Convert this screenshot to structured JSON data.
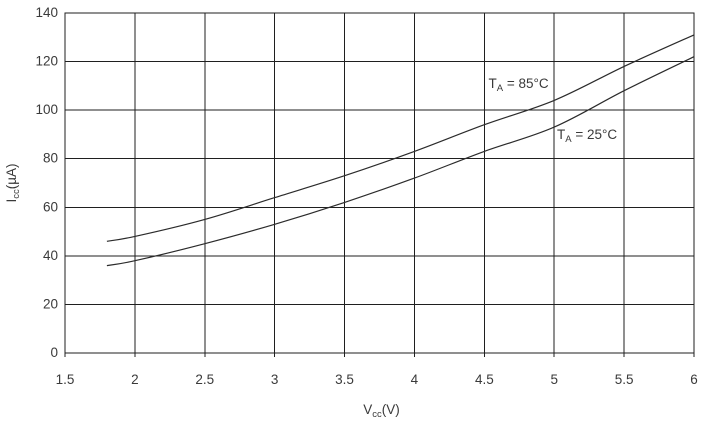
{
  "chart_data": {
    "type": "line",
    "title": "",
    "xlabel": {
      "main": "V",
      "sub": "cc",
      "rest": "(V)"
    },
    "ylabel": {
      "main": "I",
      "sub": "cc",
      "rest": "(µA)"
    },
    "xlim": [
      1.5,
      6.0
    ],
    "ylim": [
      0,
      140
    ],
    "xticks": [
      "1.5",
      "2",
      "2.5",
      "3",
      "3.5",
      "4",
      "4.5",
      "5",
      "5.5",
      "6"
    ],
    "xtick_values": [
      1.5,
      2.0,
      2.5,
      3.0,
      3.5,
      4.0,
      4.5,
      5.0,
      5.5,
      6.0
    ],
    "yticks": [
      "0",
      "20",
      "40",
      "60",
      "80",
      "100",
      "120",
      "140"
    ],
    "ytick_values": [
      0,
      20,
      40,
      60,
      80,
      100,
      120,
      140
    ],
    "grid": true,
    "legend_position": "inline-annotations",
    "series": [
      {
        "name": "TA = 85C",
        "label": {
          "main": "T",
          "sub": "A",
          "rest": " = 85°C"
        },
        "x": [
          1.8,
          2.0,
          2.5,
          3.0,
          3.5,
          4.0,
          4.5,
          5.0,
          5.5,
          6.0
        ],
        "y": [
          46,
          48,
          55,
          64,
          73,
          83,
          94,
          104,
          118,
          131
        ],
        "annotation": {
          "x": 4.53,
          "y": 111
        }
      },
      {
        "name": "TA = 25C",
        "label": {
          "main": "T",
          "sub": "A",
          "rest": " = 25°C"
        },
        "x": [
          1.8,
          2.0,
          2.5,
          3.0,
          3.5,
          4.0,
          4.5,
          5.0,
          5.5,
          6.0
        ],
        "y": [
          36,
          38,
          45,
          53,
          62,
          72,
          83,
          93,
          108,
          122
        ],
        "annotation": {
          "x": 5.02,
          "y": 90
        }
      }
    ],
    "colors": {
      "line": "#2b2b2b",
      "grid": "#1f1f1f",
      "frame": "#1f1f1f",
      "text": "#3a3a3a",
      "background": "#ffffff"
    }
  }
}
